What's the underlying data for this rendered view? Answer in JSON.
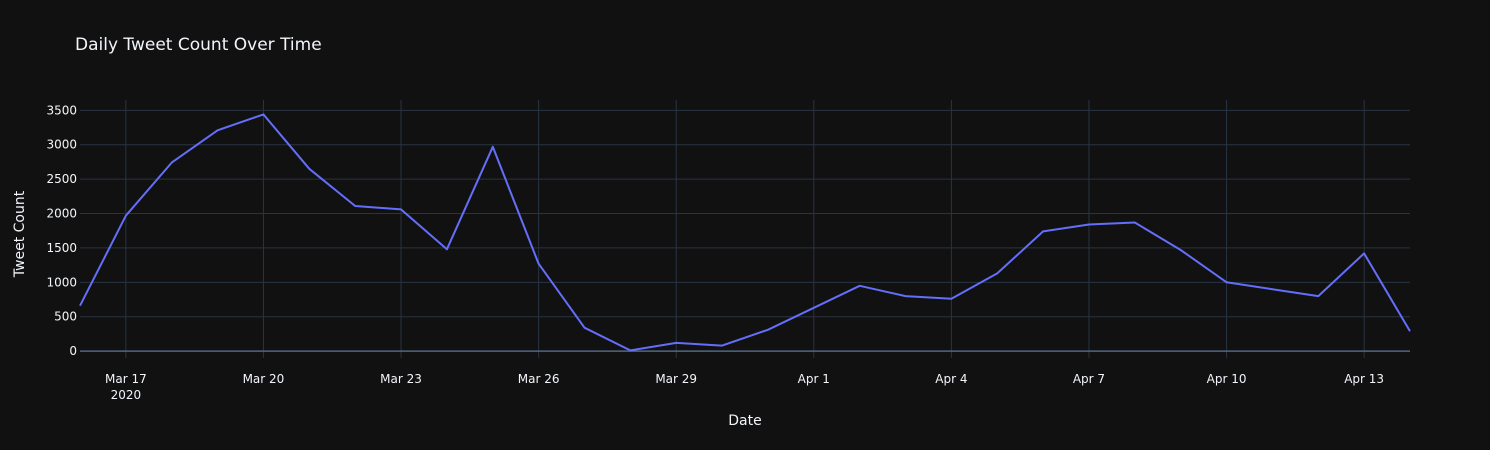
{
  "chart_data": {
    "type": "line",
    "title": "Daily Tweet Count Over Time",
    "xlabel": "Date",
    "ylabel": "Tweet Count",
    "x_start": "2020-03-16",
    "x_end": "2020-04-14",
    "xlim": [
      "2020-03-16",
      "2020-04-14"
    ],
    "ylim": [
      -100,
      3650
    ],
    "grid": true,
    "x_ticks": [
      {
        "date": "2020-03-17",
        "label": "Mar 17",
        "sub": "2020"
      },
      {
        "date": "2020-03-20",
        "label": "Mar 20"
      },
      {
        "date": "2020-03-23",
        "label": "Mar 23"
      },
      {
        "date": "2020-03-26",
        "label": "Mar 26"
      },
      {
        "date": "2020-03-29",
        "label": "Mar 29"
      },
      {
        "date": "2020-04-01",
        "label": "Apr 1"
      },
      {
        "date": "2020-04-04",
        "label": "Apr 4"
      },
      {
        "date": "2020-04-07",
        "label": "Apr 7"
      },
      {
        "date": "2020-04-10",
        "label": "Apr 10"
      },
      {
        "date": "2020-04-13",
        "label": "Apr 13"
      }
    ],
    "y_ticks": [
      0,
      500,
      1000,
      1500,
      2000,
      2500,
      3000,
      3500
    ],
    "series": [
      {
        "color": "#636efa",
        "x": [
          "2020-03-16",
          "2020-03-17",
          "2020-03-18",
          "2020-03-19",
          "2020-03-20",
          "2020-03-21",
          "2020-03-22",
          "2020-03-23",
          "2020-03-24",
          "2020-03-25",
          "2020-03-26",
          "2020-03-27",
          "2020-03-28",
          "2020-03-29",
          "2020-03-30",
          "2020-03-31",
          "2020-04-01",
          "2020-04-02",
          "2020-04-03",
          "2020-04-04",
          "2020-04-05",
          "2020-04-06",
          "2020-04-07",
          "2020-04-08",
          "2020-04-09",
          "2020-04-10",
          "2020-04-11",
          "2020-04-12",
          "2020-04-13",
          "2020-04-14"
        ],
        "y": [
          660,
          1970,
          2740,
          3210,
          3440,
          2650,
          2110,
          2060,
          1480,
          2970,
          1270,
          340,
          10,
          120,
          80,
          310,
          630,
          950,
          800,
          760,
          1130,
          1740,
          1840,
          1870,
          1470,
          1000,
          900,
          800,
          1420,
          290
        ]
      }
    ]
  }
}
